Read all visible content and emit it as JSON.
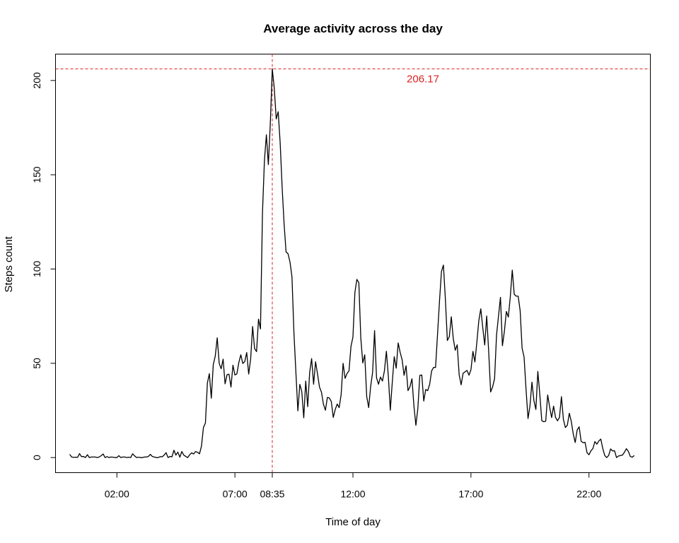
{
  "chart_data": {
    "type": "line",
    "title": "Average activity across the day",
    "xlabel": "Time of day",
    "ylabel": "Steps count",
    "xlim": [
      -0.6,
      24.6
    ],
    "ylim": [
      -8,
      214
    ],
    "x_ticks": [
      {
        "value": 2.0,
        "label": "02:00"
      },
      {
        "value": 7.0,
        "label": "07:00"
      },
      {
        "value": 8.5833,
        "label": "08:35"
      },
      {
        "value": 12.0,
        "label": "12:00"
      },
      {
        "value": 17.0,
        "label": "17:00"
      },
      {
        "value": 22.0,
        "label": "22:00"
      }
    ],
    "y_ticks": [
      {
        "value": 0,
        "label": "0"
      },
      {
        "value": 50,
        "label": "50"
      },
      {
        "value": 100,
        "label": "100"
      },
      {
        "value": 150,
        "label": "150"
      },
      {
        "value": 200,
        "label": "200"
      }
    ],
    "grid": false,
    "reference_lines": {
      "color": "#dd2222",
      "horizontal_value": 206.17,
      "vertical_value": 8.5833,
      "annotation": "206.17"
    },
    "series": [
      {
        "color": "#000000",
        "x": [
          0.0,
          0.0833,
          0.1667,
          0.25,
          0.3333,
          0.4167,
          0.5,
          0.5833,
          0.6667,
          0.75,
          0.8333,
          0.9167,
          1.0,
          1.0833,
          1.1667,
          1.25,
          1.3333,
          1.4167,
          1.5,
          1.5833,
          1.6667,
          1.75,
          1.8333,
          1.9167,
          2.0,
          2.0833,
          2.1667,
          2.25,
          2.3333,
          2.4167,
          2.5,
          2.5833,
          2.6667,
          2.75,
          2.8333,
          2.9167,
          3.0,
          3.0833,
          3.1667,
          3.25,
          3.3333,
          3.4167,
          3.5,
          3.5833,
          3.6667,
          3.75,
          3.8333,
          3.9167,
          4.0,
          4.0833,
          4.1667,
          4.25,
          4.3333,
          4.4167,
          4.5,
          4.5833,
          4.6667,
          4.75,
          4.8333,
          4.9167,
          5.0,
          5.0833,
          5.1667,
          5.25,
          5.3333,
          5.4167,
          5.5,
          5.5833,
          5.6667,
          5.75,
          5.8333,
          5.9167,
          6.0,
          6.0833,
          6.1667,
          6.25,
          6.3333,
          6.4167,
          6.5,
          6.5833,
          6.6667,
          6.75,
          6.8333,
          6.9167,
          7.0,
          7.0833,
          7.1667,
          7.25,
          7.3333,
          7.4167,
          7.5,
          7.5833,
          7.6667,
          7.75,
          7.8333,
          7.9167,
          8.0,
          8.0833,
          8.1667,
          8.25,
          8.3333,
          8.4167,
          8.5,
          8.5833,
          8.6667,
          8.75,
          8.8333,
          8.9167,
          9.0,
          9.0833,
          9.1667,
          9.25,
          9.3333,
          9.4167,
          9.5,
          9.5833,
          9.6667,
          9.75,
          9.8333,
          9.9167,
          10.0,
          10.0833,
          10.1667,
          10.25,
          10.3333,
          10.4167,
          10.5,
          10.5833,
          10.6667,
          10.75,
          10.8333,
          10.9167,
          11.0,
          11.0833,
          11.1667,
          11.25,
          11.3333,
          11.4167,
          11.5,
          11.5833,
          11.6667,
          11.75,
          11.8333,
          11.9167,
          12.0,
          12.0833,
          12.1667,
          12.25,
          12.3333,
          12.4167,
          12.5,
          12.5833,
          12.6667,
          12.75,
          12.8333,
          12.9167,
          13.0,
          13.0833,
          13.1667,
          13.25,
          13.3333,
          13.4167,
          13.5,
          13.5833,
          13.6667,
          13.75,
          13.8333,
          13.9167,
          14.0,
          14.0833,
          14.1667,
          14.25,
          14.3333,
          14.4167,
          14.5,
          14.5833,
          14.6667,
          14.75,
          14.8333,
          14.9167,
          15.0,
          15.0833,
          15.1667,
          15.25,
          15.3333,
          15.4167,
          15.5,
          15.5833,
          15.6667,
          15.75,
          15.8333,
          15.9167,
          16.0,
          16.0833,
          16.1667,
          16.25,
          16.3333,
          16.4167,
          16.5,
          16.5833,
          16.6667,
          16.75,
          16.8333,
          16.9167,
          17.0,
          17.0833,
          17.1667,
          17.25,
          17.3333,
          17.4167,
          17.5,
          17.5833,
          17.6667,
          17.75,
          17.8333,
          17.9167,
          18.0,
          18.0833,
          18.1667,
          18.25,
          18.3333,
          18.4167,
          18.5,
          18.5833,
          18.6667,
          18.75,
          18.8333,
          18.9167,
          19.0,
          19.0833,
          19.1667,
          19.25,
          19.3333,
          19.4167,
          19.5,
          19.5833,
          19.6667,
          19.75,
          19.8333,
          19.9167,
          20.0,
          20.0833,
          20.1667,
          20.25,
          20.3333,
          20.4167,
          20.5,
          20.5833,
          20.6667,
          20.75,
          20.8333,
          20.9167,
          21.0,
          21.0833,
          21.1667,
          21.25,
          21.3333,
          21.4167,
          21.5,
          21.5833,
          21.6667,
          21.75,
          21.8333,
          21.9167,
          22.0,
          22.0833,
          22.1667,
          22.25,
          22.3333,
          22.4167,
          22.5,
          22.5833,
          22.6667,
          22.75,
          22.8333,
          22.9167,
          23.0,
          23.0833,
          23.1667,
          23.25,
          23.3333,
          23.4167,
          23.5,
          23.5833,
          23.6667,
          23.75,
          23.8333,
          23.9167
        ],
        "y": [
          1.7,
          0.3,
          0.1,
          0.2,
          0.1,
          2.1,
          0.5,
          0.6,
          0.0,
          1.5,
          0.0,
          0.3,
          0.3,
          0.3,
          0.0,
          0.3,
          1.0,
          1.9,
          0.0,
          0.5,
          0.0,
          0.3,
          0.2,
          0.0,
          0.0,
          1.0,
          0.0,
          0.3,
          0.3,
          0.0,
          0.2,
          0.0,
          2.0,
          0.9,
          0.0,
          0.2,
          0.0,
          0.0,
          0.3,
          0.3,
          0.6,
          1.7,
          0.6,
          0.3,
          0.0,
          0.0,
          0.5,
          0.4,
          1.3,
          2.6,
          0.0,
          0.6,
          0.4,
          3.9,
          1.3,
          2.9,
          0.2,
          3.2,
          1.3,
          0.6,
          0.0,
          1.5,
          2.5,
          1.9,
          3.2,
          2.8,
          2.0,
          6.1,
          16.0,
          18.3,
          39.5,
          44.5,
          31.5,
          49.3,
          53.8,
          63.5,
          50.0,
          47.1,
          52.2,
          39.1,
          44.0,
          44.2,
          37.4,
          49.0,
          43.8,
          44.4,
          50.5,
          54.5,
          49.9,
          50.9,
          55.7,
          44.3,
          52.3,
          69.5,
          57.8,
          56.2,
          73.4,
          68.2,
          129.4,
          157.5,
          171.2,
          155.4,
          177.3,
          206.2,
          195.9,
          179.6,
          183.4,
          167.0,
          143.5,
          124.0,
          109.1,
          108.1,
          103.7,
          95.9,
          66.2,
          45.2,
          24.8,
          38.8,
          34.98,
          21.1,
          40.6,
          26.98,
          45.2,
          52.5,
          38.9,
          50.8,
          44.3,
          37.4,
          34.7,
          28.3,
          25.1,
          31.9,
          31.6,
          29.7,
          21.3,
          25.5,
          28.4,
          26.5,
          33.4,
          49.98,
          42.0,
          44.6,
          46.0,
          59.0,
          63.9,
          87.6,
          94.5,
          92.8,
          63.4,
          50.2,
          54.5,
          32.4,
          26.5,
          37.7,
          45.1,
          67.3,
          42.3,
          38.9,
          42.7,
          40.6,
          46.0,
          56.4,
          43.1,
          25.1,
          39.96,
          53.5,
          47.4,
          60.8,
          55.8,
          51.9,
          43.6,
          48.7,
          35.5,
          37.6,
          41.8,
          27.5,
          17.1,
          26.1,
          43.6,
          43.8,
          30.0,
          36.1,
          35.5,
          38.8,
          45.96,
          47.8,
          47.8,
          65.3,
          82.9,
          98.7,
          102.1,
          83.96,
          62.1,
          64.1,
          74.7,
          63.2,
          56.9,
          59.8,
          43.9,
          38.6,
          44.7,
          45.5,
          46.2,
          43.7,
          46.6,
          56.3,
          50.7,
          61.2,
          72.7,
          78.9,
          68.9,
          59.7,
          75.1,
          56.5,
          34.8,
          37.5,
          41.8,
          64.96,
          75.0,
          85.0,
          59.3,
          67.0,
          77.5,
          74.5,
          85.3,
          99.45,
          86.6,
          85.6,
          85.6,
          78.0,
          58.0,
          53.4,
          36.3,
          20.7,
          27.4,
          40.0,
          30.2,
          25.5,
          45.7,
          33.5,
          19.6,
          19.0,
          19.3,
          33.2,
          26.8,
          21.2,
          27.3,
          21.3,
          19.5,
          21.3,
          32.3,
          20.2,
          15.9,
          17.2,
          23.5,
          19.2,
          12.5,
          8.0,
          14.7,
          16.3,
          8.7,
          7.9,
          8.1,
          2.6,
          1.5,
          3.6,
          4.8,
          8.5,
          7.1,
          8.8,
          9.8,
          4.9,
          1.1,
          0.0,
          1.1,
          4.6,
          3.5,
          3.6,
          0.0,
          0.8,
          1.1,
          1.3,
          2.8,
          4.7,
          3.3,
          0.6,
          0.2,
          1.1
        ]
      }
    ]
  }
}
